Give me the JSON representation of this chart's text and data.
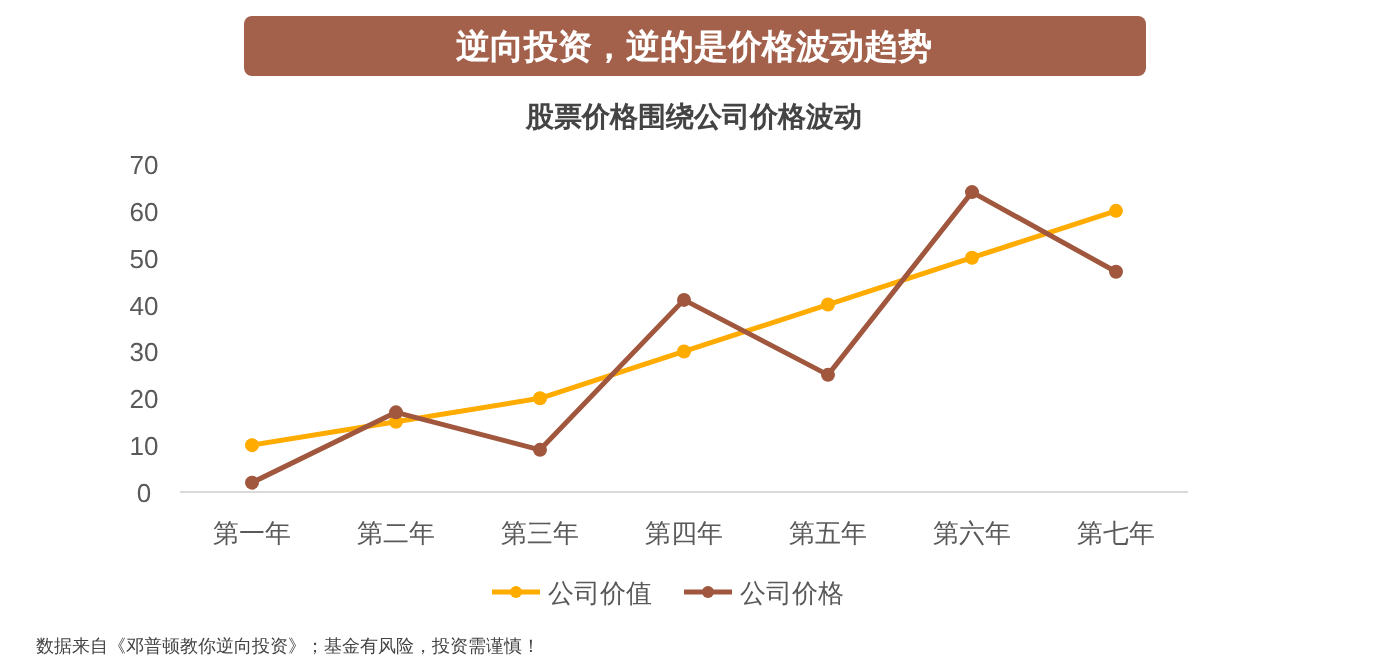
{
  "chart_data": {
    "type": "line",
    "title": "逆向投资，逆的是价格波动趋势",
    "subtitle": "股票价格围绕公司价格波动",
    "categories": [
      "第一年",
      "第二年",
      "第三年",
      "第四年",
      "第五年",
      "第六年",
      "第七年"
    ],
    "series": [
      {
        "name": "公司价值",
        "color": "#ffab00",
        "values": [
          10,
          15,
          20,
          30,
          40,
          50,
          60
        ]
      },
      {
        "name": "公司价格",
        "color": "#a0573e",
        "values": [
          2,
          17,
          9,
          41,
          25,
          64,
          47
        ]
      }
    ],
    "ylim": [
      0,
      70
    ],
    "yticks": [
      0,
      10,
      20,
      30,
      40,
      50,
      60,
      70
    ],
    "legend": "bottom",
    "marker": "circle",
    "line_style": "solid",
    "annotations": [
      "数据来自《邓普顿教你逆向投资》；基金有风险，投资需谨慎！"
    ]
  }
}
